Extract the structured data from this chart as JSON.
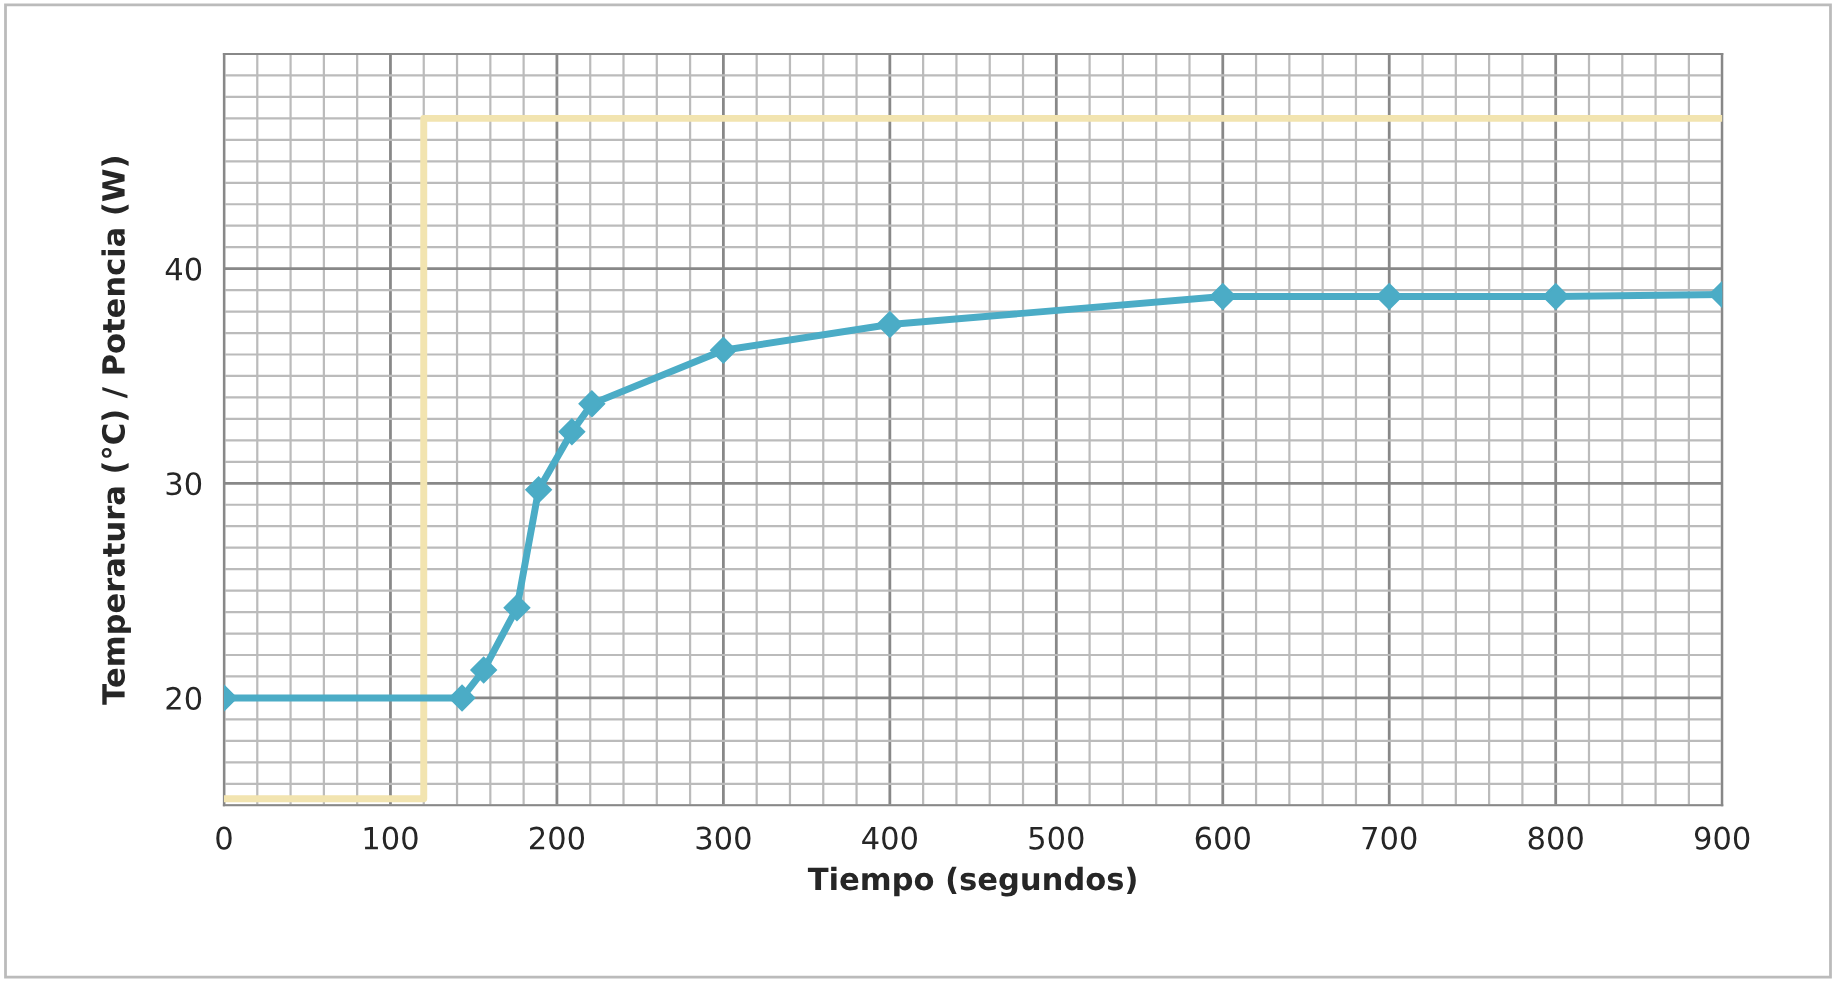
{
  "chart_data": {
    "type": "line",
    "xlabel": "Tiempo (segundos)",
    "ylabel": "Temperatura (°C) / Potencia (W)",
    "xlim": [
      0,
      900
    ],
    "ylim": [
      15,
      50
    ],
    "xticks": [
      0,
      100,
      200,
      300,
      400,
      500,
      600,
      700,
      800,
      900
    ],
    "yticks": [
      20,
      30,
      40
    ],
    "grid": true,
    "legend": false,
    "series": [
      {
        "type": "step",
        "color": "#f2e4b0",
        "marker": "none",
        "x": [
          0,
          120,
          900
        ],
        "values": [
          15.3,
          47,
          47
        ]
      },
      {
        "color": "#4bacc6",
        "marker": "diamond",
        "x": [
          0,
          143,
          156,
          176,
          189,
          209,
          221,
          300,
          400,
          600,
          700,
          800,
          900
        ],
        "values": [
          20,
          20,
          21.3,
          24.2,
          29.7,
          32.4,
          33.7,
          36.2,
          37.4,
          38.7,
          38.7,
          38.7,
          38.8
        ]
      }
    ]
  }
}
